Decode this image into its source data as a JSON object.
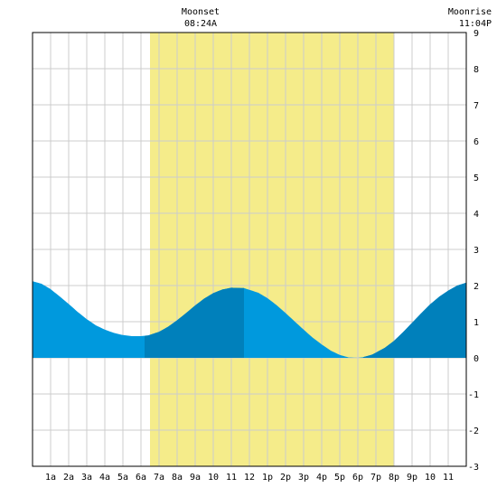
{
  "header": {
    "moonset_label": "Moonset",
    "moonset_time": "08:24A",
    "moonrise_label": "Moonrise",
    "moonrise_time": "11:04P"
  },
  "colors": {
    "daylight": "#f5ec8a",
    "tide_light": "#0099dd",
    "tide_dark": "#0080bb",
    "grid": "#cccccc",
    "border": "#000000",
    "background": "#ffffff"
  },
  "chart_data": {
    "type": "area",
    "title": "",
    "xlabel": "",
    "ylabel": "",
    "xlim": [
      0,
      24
    ],
    "ylim": [
      -3,
      9
    ],
    "grid": true,
    "x_tick_labels": [
      "1a",
      "2a",
      "3a",
      "4a",
      "5a",
      "6a",
      "7a",
      "8a",
      "9a",
      "10",
      "11",
      "12",
      "1p",
      "2p",
      "3p",
      "4p",
      "5p",
      "6p",
      "7p",
      "8p",
      "9p",
      "10",
      "11"
    ],
    "y_ticks": [
      -3,
      -2,
      -1,
      0,
      1,
      2,
      3,
      4,
      5,
      6,
      7,
      8,
      9
    ],
    "daylight_hours": [
      6.5,
      20.0
    ],
    "tide_series": {
      "x": [
        0.0,
        0.5,
        1.0,
        1.5,
        2.0,
        2.5,
        3.0,
        3.5,
        4.0,
        4.5,
        5.0,
        5.5,
        6.0,
        6.4,
        7.0,
        7.5,
        8.0,
        8.5,
        9.0,
        9.5,
        10.0,
        10.5,
        11.0,
        11.7,
        12.5,
        13.0,
        13.5,
        14.0,
        14.5,
        15.0,
        15.5,
        16.0,
        16.5,
        17.0,
        17.5,
        18.0,
        18.3,
        18.8,
        19.5,
        20.0,
        20.5,
        21.0,
        21.5,
        22.0,
        22.5,
        23.0,
        23.5,
        24.0
      ],
      "y": [
        2.12,
        2.05,
        1.9,
        1.7,
        1.49,
        1.27,
        1.07,
        0.9,
        0.78,
        0.69,
        0.63,
        0.6,
        0.6,
        0.62,
        0.72,
        0.86,
        1.04,
        1.24,
        1.45,
        1.64,
        1.79,
        1.89,
        1.94,
        1.93,
        1.8,
        1.65,
        1.46,
        1.24,
        1.01,
        0.78,
        0.56,
        0.37,
        0.2,
        0.08,
        0.01,
        0.0,
        0.02,
        0.09,
        0.28,
        0.47,
        0.71,
        0.97,
        1.23,
        1.48,
        1.69,
        1.86,
        2.0,
        2.08
      ]
    },
    "dark_intervals": [
      [
        6.2,
        11.7
      ],
      [
        18.3,
        24.0
      ]
    ]
  }
}
